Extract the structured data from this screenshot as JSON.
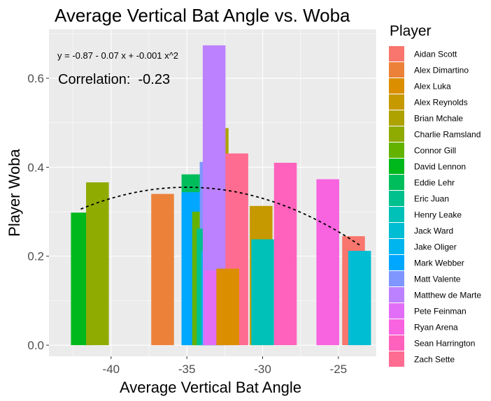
{
  "chart_data": {
    "type": "bar",
    "title": "Average Vertical Bat Angle vs. Woba",
    "xlabel": "Average Vertical Bat Angle",
    "ylabel": "Player Woba",
    "xlim": [
      -44.1,
      -22.5
    ],
    "ylim": [
      -0.025,
      0.71
    ],
    "xticks": [
      -40,
      -35,
      -30,
      -25
    ],
    "xtick_labels": [
      "-40",
      "-35",
      "-30",
      "-25"
    ],
    "yticks": [
      0.0,
      0.2,
      0.4,
      0.6
    ],
    "ytick_labels": [
      "0.0",
      "0.2",
      "0.4",
      "0.6"
    ],
    "grid": true,
    "legend_title": "Player",
    "legend_position": "right",
    "bar_width": 1.5,
    "series": [
      {
        "name": "Aidan Scott",
        "x": -24.0,
        "y": 0.245,
        "color": "#F8766D"
      },
      {
        "name": "Alex Dimartino",
        "x": -36.6,
        "y": 0.34,
        "color": "#EC8239"
      },
      {
        "name": "Alex Luka",
        "x": -32.3,
        "y": 0.172,
        "color": "#DB8E00"
      },
      {
        "name": "Alex Reynolds",
        "x": -30.1,
        "y": 0.313,
        "color": "#C69900"
      },
      {
        "name": "Brian Mchale",
        "x": -33.0,
        "y": 0.488,
        "color": "#AEA200"
      },
      {
        "name": "Charlie Ramsland",
        "x": -40.9,
        "y": 0.366,
        "color": "#8FAA00"
      },
      {
        "name": "Connor Gill",
        "x": -33.9,
        "y": 0.3,
        "color": "#64B200"
      },
      {
        "name": "David Lennon",
        "x": -41.9,
        "y": 0.298,
        "color": "#00B81B"
      },
      {
        "name": "Eddie Lehr",
        "x": -34.6,
        "y": 0.384,
        "color": "#00BD5C"
      },
      {
        "name": "Eric Juan",
        "x": -33.6,
        "y": 0.262,
        "color": "#00C08E"
      },
      {
        "name": "Henry Leake",
        "x": -30.0,
        "y": 0.238,
        "color": "#00C1B7"
      },
      {
        "name": "Jack Ward",
        "x": -23.6,
        "y": 0.212,
        "color": "#00BDD4"
      },
      {
        "name": "Jake Oliger",
        "x": -33.3,
        "y": 0.211,
        "color": "#00B5EE"
      },
      {
        "name": "Mark Webber",
        "x": -34.6,
        "y": 0.344,
        "color": "#00A7FF"
      },
      {
        "name": "Matt Valente",
        "x": -33.4,
        "y": 0.412,
        "color": "#7F96FF"
      },
      {
        "name": "Matthew de Marte",
        "x": -33.2,
        "y": 0.674,
        "color": "#BC81FF"
      },
      {
        "name": "Pete Feinman",
        "x": -33.1,
        "y": 0.168,
        "color": "#E26EF7"
      },
      {
        "name": "Ryan Arena",
        "x": -25.7,
        "y": 0.373,
        "color": "#F863DF"
      },
      {
        "name": "Sean Harrington",
        "x": -28.5,
        "y": 0.41,
        "color": "#FF62BC"
      },
      {
        "name": "Zach Sette",
        "x": -31.7,
        "y": 0.431,
        "color": "#FF6C91"
      }
    ],
    "draw_order": [
      "Aidan Scott",
      "David Lennon",
      "Charlie Ramsland",
      "Alex Dimartino",
      "Eddie Lehr",
      "Mark Webber",
      "Connor Gill",
      "Brian Mchale",
      "Matt Valente",
      "Eric Juan",
      "Jake Oliger",
      "Matthew de Marte",
      "Pete Feinman",
      "Zach Sette",
      "Alex Reynolds",
      "Henry Leake",
      "Sean Harrington",
      "Ryan Arena",
      "Alex Luka",
      "Jack Ward"
    ],
    "trend_line": {
      "style": "dashed",
      "color": "#000000",
      "x_range": [
        -42.0,
        -23.6
      ],
      "coefficients": {
        "intercept": -0.87,
        "linear": -0.07,
        "quadratic": -0.001
      }
    },
    "annotations": {
      "equation": "y = -0.87 - 0.07 x + -0.001 x^2",
      "correlation": "Correlation:  -0.23"
    }
  }
}
